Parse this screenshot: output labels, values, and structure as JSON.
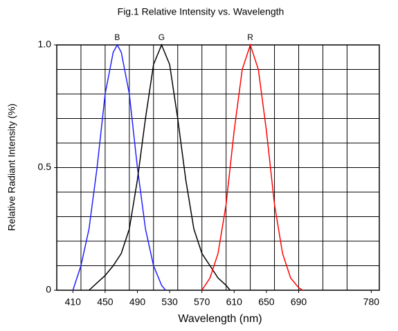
{
  "chart_data": {
    "type": "line",
    "title": "Fig.1 Relative Intensity vs. Wavelength",
    "xlabel": "Wavelength (nm)",
    "ylabel": "Relative Radiant Intensity (%)",
    "xlim": [
      390,
      790
    ],
    "xticks": [
      410,
      450,
      490,
      530,
      570,
      610,
      650,
      690,
      780
    ],
    "ylim": [
      0,
      1
    ],
    "yticks": [
      0,
      0.5,
      {
        "value": 1,
        "label": "1.0"
      }
    ],
    "xgrid": [
      390,
      420,
      450,
      480,
      510,
      540,
      570,
      600,
      630,
      660,
      690,
      720,
      750,
      790
    ],
    "ygrid": [
      0,
      0.1,
      0.2,
      0.3,
      0.4,
      0.5,
      0.6,
      0.7,
      0.8,
      0.9,
      1
    ],
    "grid": true,
    "series": [
      {
        "name": "B",
        "color": "#1f1fff",
        "x": [
          410,
          420,
          430,
          440,
          450,
          460,
          465,
          470,
          480,
          490,
          500,
          510,
          520,
          525
        ],
        "values": [
          0,
          0.1,
          0.25,
          0.5,
          0.8,
          0.97,
          1,
          0.97,
          0.8,
          0.5,
          0.25,
          0.1,
          0.02,
          0
        ]
      },
      {
        "name": "G",
        "color": "#000000",
        "x": [
          430,
          440,
          450,
          460,
          470,
          480,
          490,
          500,
          510,
          520,
          530,
          540,
          550,
          560,
          570,
          580,
          590,
          600,
          605
        ],
        "values": [
          0,
          0.03,
          0.06,
          0.1,
          0.15,
          0.25,
          0.45,
          0.7,
          0.92,
          1,
          0.92,
          0.7,
          0.45,
          0.25,
          0.15,
          0.1,
          0.05,
          0.02,
          0
        ]
      },
      {
        "name": "R",
        "color": "#ff0000",
        "x": [
          570,
          580,
          590,
          600,
          610,
          620,
          630,
          640,
          650,
          660,
          670,
          680,
          690,
          695
        ],
        "values": [
          0,
          0.05,
          0.15,
          0.35,
          0.65,
          0.9,
          1,
          0.9,
          0.65,
          0.35,
          0.15,
          0.05,
          0.01,
          0
        ]
      }
    ]
  }
}
